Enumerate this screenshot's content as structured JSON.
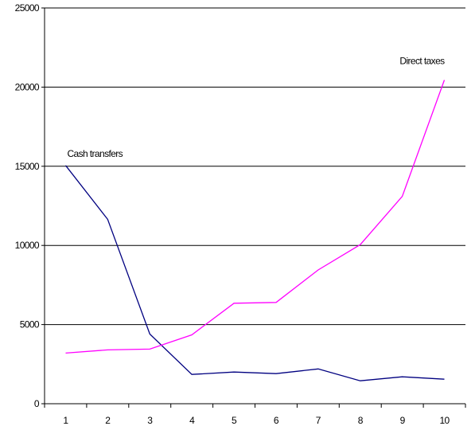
{
  "chart_data": {
    "type": "line",
    "x": [
      1,
      2,
      3,
      4,
      5,
      6,
      7,
      8,
      9,
      10
    ],
    "ylim": [
      0,
      25000
    ],
    "yticks": [
      0,
      5000,
      10000,
      15000,
      20000,
      25000
    ],
    "grid": true,
    "legend": "none",
    "series": [
      {
        "name": "Cash transfers",
        "color": "#000080",
        "values": [
          15050,
          11650,
          4400,
          1850,
          2000,
          1900,
          2200,
          1450,
          1700,
          1550
        ]
      },
      {
        "name": "Direct taxes",
        "color": "#ff00ff",
        "values": [
          3200,
          3400,
          3450,
          4350,
          6350,
          6400,
          8450,
          10050,
          13100,
          20450
        ]
      }
    ],
    "annotations": [
      {
        "text": "Cash transfers",
        "series": 0,
        "at_x": 1
      },
      {
        "text": "Direct taxes",
        "series": 1,
        "at_x": 10
      }
    ]
  }
}
